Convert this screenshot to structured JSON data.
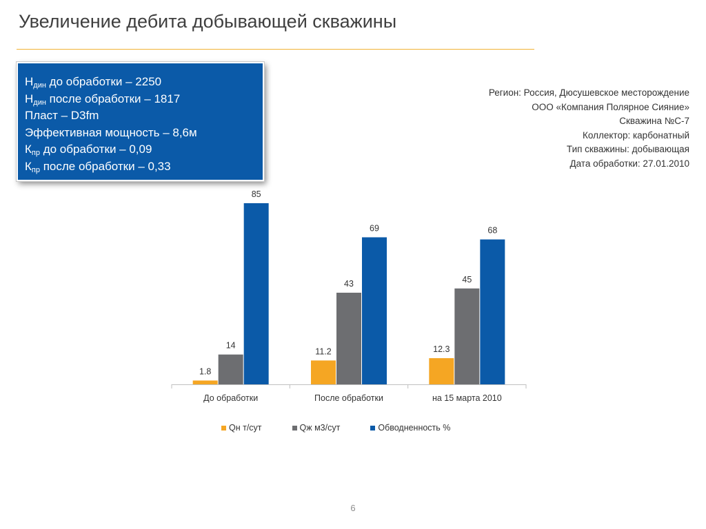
{
  "slide": {
    "title": "Увеличение дебита добывающей скважины",
    "page_number": "6"
  },
  "info_box": {
    "lines": [
      {
        "main": "Н",
        "sub": "дин",
        "rest": " до обработки – 2250"
      },
      {
        "main": "Н",
        "sub": "дин",
        "rest": " после обработки – 1817"
      },
      {
        "main": "Пласт – D3fm",
        "sub": "",
        "rest": ""
      },
      {
        "main": "Эффективная мощность – 8,6м",
        "sub": "",
        "rest": ""
      },
      {
        "main": "К",
        "sub": "пр",
        "rest": " до обработки – 0,09"
      },
      {
        "main": "К",
        "sub": "пр",
        "rest": " после обработки – 0,33"
      }
    ]
  },
  "meta": {
    "region": "Регион: Россия, Дюсушевское месторождение",
    "company": "ООО «Компания Полярное Сияние»",
    "well": "Скважина  №С-7",
    "collector": "Коллектор: карбонатный",
    "well_type": "Тип скважины: добывающая",
    "date": "Дата обработки: 27.01.2010"
  },
  "chart_data": {
    "type": "bar",
    "categories": [
      "До обработки",
      "После обработки",
      "на 15 марта 2010"
    ],
    "series": [
      {
        "name": "Qн т/сут",
        "values": [
          1.8,
          11.2,
          12.3
        ],
        "labels": [
          "1.8",
          "11.2",
          "12.3"
        ],
        "color": "#f5a623"
      },
      {
        "name": "Qж м3/сут",
        "values": [
          14,
          43,
          45
        ],
        "labels": [
          "14",
          "43",
          "45"
        ],
        "color": "#6d6e71"
      },
      {
        "name": "Обводненность %",
        "values": [
          85,
          69,
          68
        ],
        "labels": [
          "85",
          "69",
          "68"
        ],
        "color": "#0b5aa8"
      }
    ],
    "ylim": [
      0,
      85
    ],
    "grid": false,
    "legend_position": "bottom"
  }
}
